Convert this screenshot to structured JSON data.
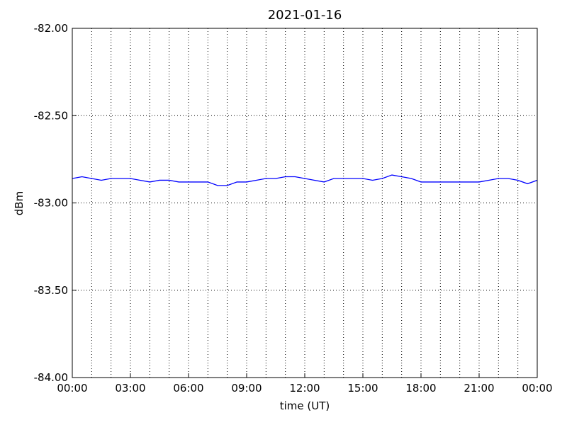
{
  "chart_data": {
    "type": "line",
    "title": "2021-01-16",
    "xlabel": "time (UT)",
    "ylabel": "dBm",
    "x": [
      0,
      0.5,
      1,
      1.5,
      2,
      2.5,
      3,
      3.5,
      4,
      4.5,
      5,
      5.5,
      6,
      6.5,
      7,
      7.5,
      8,
      8.5,
      9,
      9.5,
      10,
      10.5,
      11,
      11.5,
      12,
      12.5,
      13,
      13.5,
      14,
      14.5,
      15,
      15.5,
      16,
      16.5,
      17,
      17.5,
      18,
      18.5,
      19,
      19.5,
      20,
      20.5,
      21,
      21.5,
      22,
      22.5,
      23,
      23.5,
      24
    ],
    "series": [
      {
        "color": "#0000ff",
        "values": [
          -82.86,
          -82.85,
          -82.86,
          -82.87,
          -82.86,
          -82.86,
          -82.86,
          -82.87,
          -82.88,
          -82.87,
          -82.87,
          -82.88,
          -82.88,
          -82.88,
          -82.88,
          -82.9,
          -82.9,
          -82.88,
          -82.88,
          -82.87,
          -82.86,
          -82.86,
          -82.85,
          -82.85,
          -82.86,
          -82.87,
          -82.88,
          -82.86,
          -82.86,
          -82.86,
          -82.86,
          -82.87,
          -82.86,
          -82.84,
          -82.85,
          -82.86,
          -82.88,
          -82.88,
          -82.88,
          -82.88,
          -82.88,
          -82.88,
          -82.88,
          -82.87,
          -82.86,
          -82.86,
          -82.87,
          -82.89,
          -82.87
        ]
      }
    ],
    "xlim": [
      0,
      24
    ],
    "xticks": [
      {
        "value": 0,
        "label": "00:00"
      },
      {
        "value": 3,
        "label": "03:00"
      },
      {
        "value": 6,
        "label": "06:00"
      },
      {
        "value": 9,
        "label": "09:00"
      },
      {
        "value": 12,
        "label": "12:00"
      },
      {
        "value": 15,
        "label": "15:00"
      },
      {
        "value": 18,
        "label": "18:00"
      },
      {
        "value": 21,
        "label": "21:00"
      },
      {
        "value": 24,
        "label": "00:00"
      }
    ],
    "xminorticks": [
      1,
      2,
      4,
      5,
      7,
      8,
      10,
      11,
      13,
      14,
      16,
      17,
      19,
      20,
      22,
      23
    ],
    "ylim": [
      -84,
      -82
    ],
    "yticks": [
      {
        "value": -84,
        "label": "-84.00"
      },
      {
        "value": -83.5,
        "label": "-83.50"
      },
      {
        "value": -83,
        "label": "-83.00"
      },
      {
        "value": -82.5,
        "label": "-82.50"
      },
      {
        "value": -82,
        "label": "-82.00"
      }
    ],
    "grid": true
  }
}
